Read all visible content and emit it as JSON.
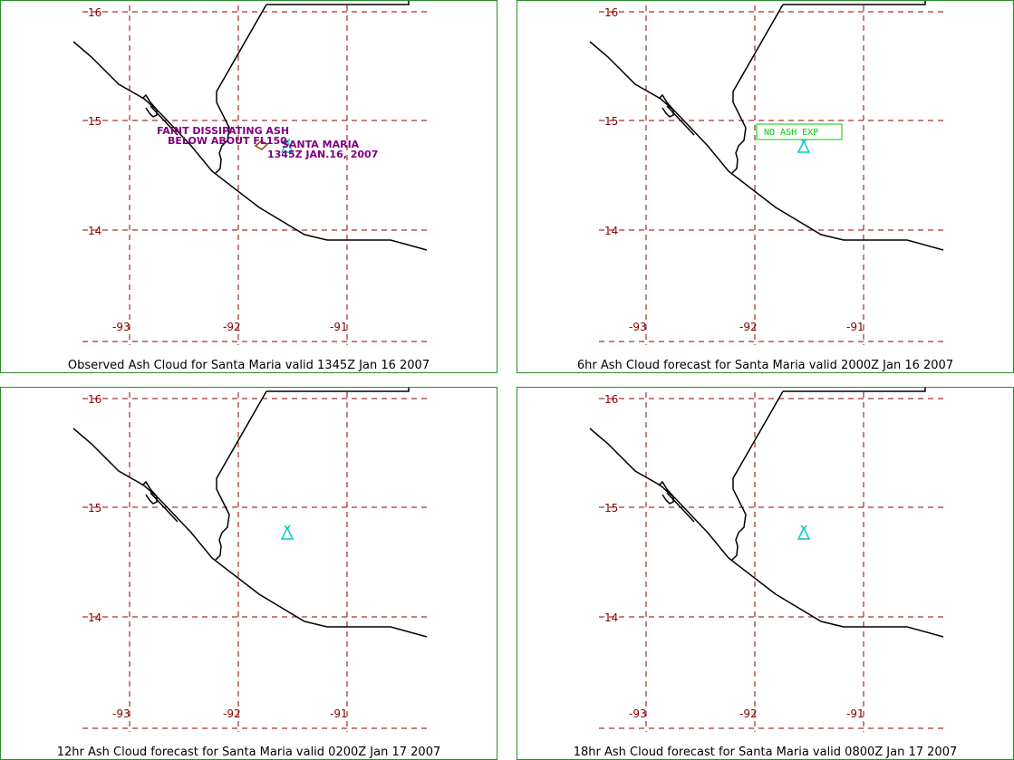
{
  "panels": [
    {
      "caption": "Observed Ash Cloud for Santa  Maria valid 1345Z Jan 16 2007",
      "annotation_lines": [
        "FAINT DISSIPATING ASH",
        "BELOW ABOUT FL150"
      ],
      "volcano_label_lines": [
        "SANTA MARIA",
        "1345Z JAN.16, 2007"
      ],
      "stamp": ""
    },
    {
      "caption": "6hr Ash Cloud forecast for Santa  Maria valid 2000Z Jan 16 2007",
      "annotation_lines": [],
      "volcano_label_lines": [],
      "stamp": "NO ASH EXP"
    },
    {
      "caption": "12hr Ash Cloud forecast for Santa  Maria valid 0200Z Jan 17 2007",
      "annotation_lines": [],
      "volcano_label_lines": [],
      "stamp": ""
    },
    {
      "caption": "18hr Ash Cloud forecast for Santa  Maria valid 0800Z Jan 17 2007",
      "annotation_lines": [],
      "volcano_label_lines": [],
      "stamp": ""
    }
  ],
  "lat_labels": [
    "16",
    "15",
    "14"
  ],
  "lon_labels": [
    "-93",
    "-92",
    "-91"
  ],
  "colors": {
    "grid": "#8b0000",
    "border": "#2e8b2e",
    "coast": "#000000",
    "volcano": "#00cccc",
    "annotation": "#800080",
    "stamp": "#00cc00",
    "ash_polygon": "#8b4513"
  },
  "icons": {
    "volcano": "volcano-triangle-icon"
  }
}
